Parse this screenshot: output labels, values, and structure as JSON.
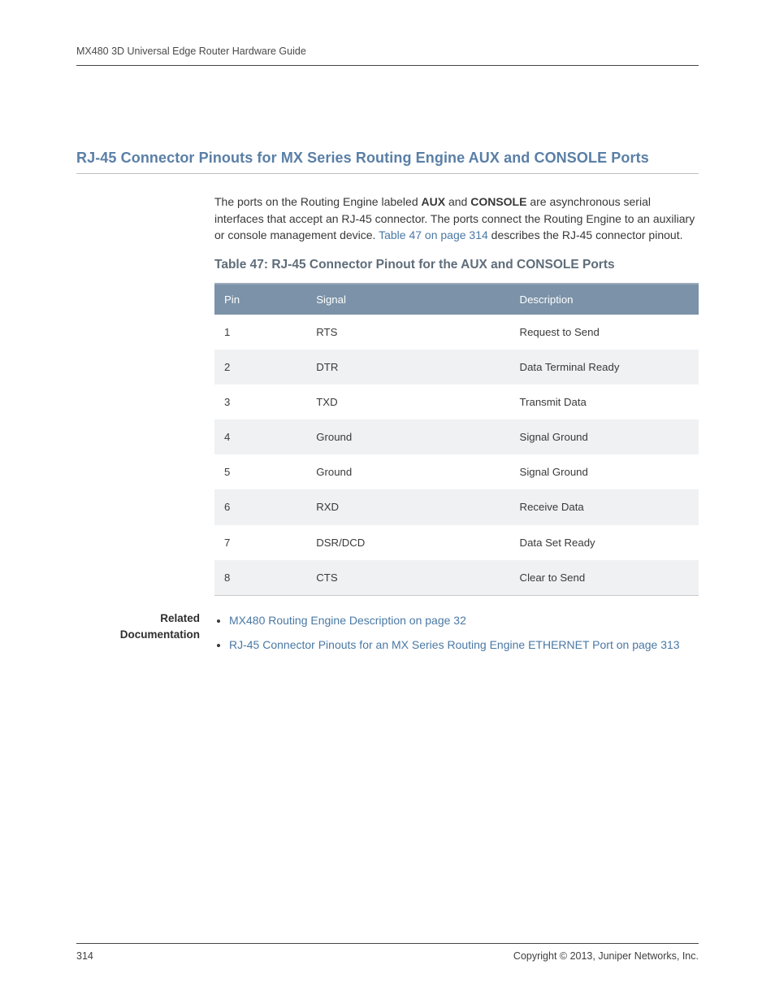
{
  "header": {
    "running_head": "MX480 3D Universal Edge Router Hardware Guide"
  },
  "section": {
    "title": "RJ-45 Connector Pinouts for MX Series Routing Engine AUX and CONSOLE Ports",
    "paragraph_parts": {
      "p1": "The ports on the Routing Engine labeled ",
      "b1": "AUX",
      "p2": " and ",
      "b2": "CONSOLE",
      "p3": " are asynchronous serial interfaces that accept an RJ-45 connector. The ports connect the Routing Engine to an auxiliary or console management device. ",
      "link": "Table 47 on page 314",
      "p4": " describes the RJ-45 connector pinout."
    }
  },
  "table": {
    "title": "Table 47: RJ-45 Connector Pinout for the AUX and CONSOLE Ports",
    "columns": [
      "Pin",
      "Signal",
      "Description"
    ],
    "rows": [
      [
        "1",
        "RTS",
        "Request to Send"
      ],
      [
        "2",
        "DTR",
        "Data Terminal Ready"
      ],
      [
        "3",
        "TXD",
        "Transmit Data"
      ],
      [
        "4",
        "Ground",
        "Signal Ground"
      ],
      [
        "5",
        "Ground",
        "Signal Ground"
      ],
      [
        "6",
        "RXD",
        "Receive Data"
      ],
      [
        "7",
        "DSR/DCD",
        "Data Set Ready"
      ],
      [
        "8",
        "CTS",
        "Clear to Send"
      ]
    ]
  },
  "related": {
    "label_line1": "Related",
    "label_line2": "Documentation",
    "items": [
      "MX480 Routing Engine Description on page 32",
      "RJ-45 Connector Pinouts for an MX Series Routing Engine ETHERNET Port on page 313"
    ]
  },
  "footer": {
    "page_number": "314",
    "copyright": "Copyright © 2013, Juniper Networks, Inc."
  },
  "style": {
    "link_color": "#4a78a4",
    "heading_color": "#5a7fa6",
    "table_header_bg": "#7b92a8",
    "row_alt_bg": "#eff1f3"
  }
}
